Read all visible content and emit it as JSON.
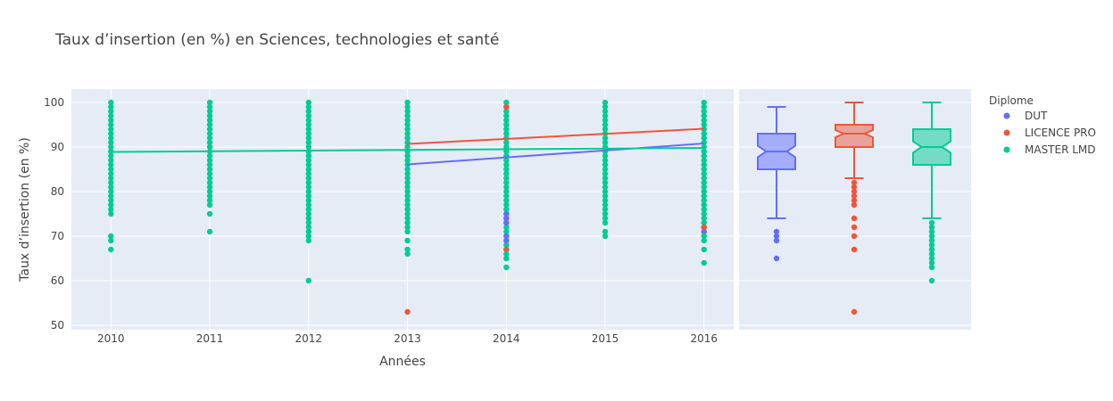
{
  "chart_data": {
    "type": "scatter",
    "title": "Taux d’insertion (en %) en Sciences, technologies et santé",
    "xlabel": "Années",
    "ylabel": "Taux d’insertion (en %)",
    "x_ticks": [
      "2010",
      "2011",
      "2012",
      "2013",
      "2014",
      "2015",
      "2016"
    ],
    "y_ticks": [
      "50",
      "60",
      "70",
      "80",
      "90",
      "100"
    ],
    "xlim": [
      2009.6,
      2016.3
    ],
    "ylim": [
      49,
      103
    ],
    "grid": true,
    "legend_title": "Diplome",
    "legend_position": "right",
    "series": [
      {
        "name": "DUT",
        "color": "#636efa",
        "points": [
          {
            "x": 2014,
            "y": 69
          },
          {
            "x": 2014,
            "y": 70
          },
          {
            "x": 2014,
            "y": 73
          },
          {
            "x": 2014,
            "y": 74
          },
          {
            "x": 2014,
            "y": 75
          },
          {
            "x": 2016,
            "y": 71
          }
        ],
        "trend": {
          "x": [
            2013,
            2016
          ],
          "y": [
            86.1,
            90.8
          ]
        },
        "box": {
          "min": 74,
          "q1": 85,
          "median": 89,
          "q3": 93,
          "max": 99,
          "outliers": [
            71,
            70,
            69,
            65
          ]
        }
      },
      {
        "name": "LICENCE PRO",
        "color": "#ef553b",
        "points": [
          {
            "x": 2013,
            "y": 53
          },
          {
            "x": 2014,
            "y": 65
          },
          {
            "x": 2014,
            "y": 67
          },
          {
            "x": 2014,
            "y": 99
          },
          {
            "x": 2016,
            "y": 72
          }
        ],
        "trend": {
          "x": [
            2013,
            2016
          ],
          "y": [
            90.7,
            94.1
          ]
        },
        "box": {
          "min": 83,
          "q1": 90,
          "median": 93,
          "q3": 95,
          "max": 100,
          "outliers": [
            82,
            81,
            80,
            79,
            78,
            77,
            74,
            72,
            70,
            67,
            53
          ]
        }
      },
      {
        "name": "MASTER LMD",
        "color": "#00cc96",
        "points": [
          {
            "x": 2010,
            "y": 67
          },
          {
            "x": 2010,
            "y": 69
          },
          {
            "x": 2010,
            "y": 70
          },
          {
            "x": 2011,
            "y": 71
          },
          {
            "x": 2011,
            "y": 75
          },
          {
            "x": 2012,
            "y": 60
          },
          {
            "x": 2012,
            "y": 69
          },
          {
            "x": 2012,
            "y": 70
          },
          {
            "x": 2012,
            "y": 71
          },
          {
            "x": 2013,
            "y": 66
          },
          {
            "x": 2013,
            "y": 67
          },
          {
            "x": 2013,
            "y": 69
          },
          {
            "x": 2014,
            "y": 63
          },
          {
            "x": 2014,
            "y": 65
          },
          {
            "x": 2014,
            "y": 66
          },
          {
            "x": 2015,
            "y": 70
          },
          {
            "x": 2015,
            "y": 71
          },
          {
            "x": 2016,
            "y": 64
          },
          {
            "x": 2016,
            "y": 67
          },
          {
            "x": 2016,
            "y": 69
          },
          {
            "x": 2016,
            "y": 70
          }
        ],
        "dense_ranges": [
          {
            "x": 2010,
            "from": 75,
            "to": 100
          },
          {
            "x": 2011,
            "from": 77,
            "to": 100
          },
          {
            "x": 2012,
            "from": 72,
            "to": 100
          },
          {
            "x": 2013,
            "from": 71,
            "to": 100
          },
          {
            "x": 2014,
            "from": 67,
            "to": 100
          },
          {
            "x": 2015,
            "from": 73,
            "to": 100
          },
          {
            "x": 2016,
            "from": 71,
            "to": 100
          }
        ],
        "trend": {
          "x": [
            2010,
            2016
          ],
          "y": [
            88.9,
            89.8
          ]
        },
        "box": {
          "min": 74,
          "q1": 86,
          "median": 90,
          "q3": 94,
          "max": 100,
          "outliers": [
            73,
            72,
            71,
            70,
            69,
            68,
            67,
            66,
            65,
            64,
            63,
            60
          ]
        }
      }
    ]
  }
}
